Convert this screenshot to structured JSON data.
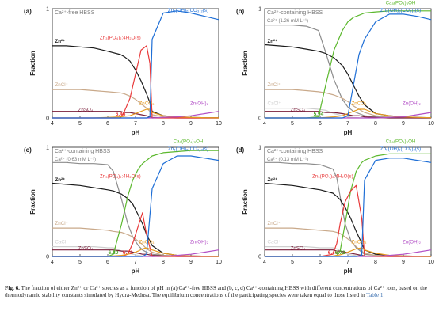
{
  "colors": {
    "Zn2+": "#1a1a1a",
    "ZnCl+": "#c9a98a",
    "ZnSO4": "#7a1e3a",
    "Zn3(PO4)2:4H2O(s)": "#e8393a",
    "ZnCO3": "#e69a1e",
    "Zn(OH)2": "#b24fc6",
    "Zn5(OH)6(CO3)2(s)": "#1f6fd6",
    "Ca2+": "#8c8c8c",
    "CaCl+": "#cfcfcf",
    "Ca5(PO4)3OH": "#5cb82e",
    "annotation_red": "#e8393a",
    "annotation_green": "#4da32a"
  },
  "chart_data": [
    {
      "type": "line",
      "panel": "(a)",
      "title": "Ca²⁺-free HBSS",
      "subtitle": "",
      "xlabel": "pH",
      "ylabel": "Fraction",
      "xlim": [
        4,
        10
      ],
      "ylim": [
        0,
        1
      ],
      "xticks": [
        "4",
        "5",
        "6",
        "7",
        "8",
        "9",
        "10"
      ],
      "yticks": [
        "0",
        "1"
      ],
      "x": [
        4,
        4.5,
        5,
        5.5,
        6,
        6.46,
        6.6,
        6.8,
        7,
        7.2,
        7.4,
        7.52,
        7.6,
        8,
        8.5,
        9,
        9.5,
        10
      ],
      "series": [
        {
          "name": "Zn²⁺",
          "values": [
            0.66,
            0.66,
            0.65,
            0.64,
            0.61,
            0.58,
            0.56,
            0.52,
            0.44,
            0.34,
            0.22,
            0.14,
            0.06,
            0.02,
            0.01,
            0.005,
            0.002,
            0.001
          ]
        },
        {
          "name": "ZnCl⁺",
          "values": [
            0.26,
            0.26,
            0.26,
            0.25,
            0.24,
            0.23,
            0.22,
            0.2,
            0.17,
            0.13,
            0.09,
            0.06,
            0.03,
            0.01,
            0.005,
            0.002,
            0.001,
            0
          ]
        },
        {
          "name": "ZnSO₄",
          "values": [
            0.06,
            0.06,
            0.06,
            0.06,
            0.06,
            0.06,
            0.05,
            0.05,
            0.04,
            0.03,
            0.02,
            0.01,
            0.005,
            0.002,
            0,
            0,
            0,
            0
          ]
        },
        {
          "name": "Zn₃(PO₄)₂:4H₂O(s)",
          "values": [
            0,
            0,
            0,
            0,
            0,
            0,
            0.06,
            0.18,
            0.4,
            0.62,
            0.66,
            0.5,
            0,
            0,
            0,
            0,
            0,
            0
          ]
        },
        {
          "name": "ZnCO₃",
          "values": [
            0,
            0,
            0,
            0,
            0.005,
            0.01,
            0.015,
            0.02,
            0.04,
            0.06,
            0.08,
            0.08,
            0.05,
            0.02,
            0.01,
            0.005,
            0.002,
            0.001
          ]
        },
        {
          "name": "Zn(OH)₂",
          "values": [
            0,
            0,
            0,
            0,
            0,
            0,
            0,
            0,
            0,
            0,
            0,
            0,
            0,
            0.005,
            0.01,
            0.02,
            0.04,
            0.06
          ]
        },
        {
          "name": "Zn₅(OH)₆(CO₃)₂(s)",
          "values": [
            0,
            0,
            0,
            0,
            0,
            0,
            0,
            0,
            0,
            0,
            0,
            0.01,
            0.72,
            0.96,
            0.98,
            0.96,
            0.93,
            0.9
          ]
        }
      ],
      "annotations": [
        {
          "text": "6.46",
          "x": 6.46,
          "color": "annotation_red"
        }
      ]
    },
    {
      "type": "line",
      "panel": "(b)",
      "title": "Ca²⁺-containing HBSS",
      "subtitle": "Ca²⁺ (1.26 mM L⁻¹)",
      "xlabel": "pH",
      "ylabel": "Fraction",
      "xlim": [
        4,
        10
      ],
      "ylim": [
        0,
        1
      ],
      "xticks": [
        "4",
        "5",
        "6",
        "7",
        "8",
        "9",
        "10"
      ],
      "yticks": [
        "0",
        "1"
      ],
      "x": [
        4,
        4.5,
        5,
        5.5,
        5.94,
        6.2,
        6.5,
        6.8,
        7,
        7.2,
        7.4,
        7.6,
        8,
        8.5,
        9,
        9.5,
        10
      ],
      "series": [
        {
          "name": "Ca²⁺",
          "values": [
            0.85,
            0.85,
            0.85,
            0.84,
            0.8,
            0.6,
            0.35,
            0.17,
            0.1,
            0.06,
            0.04,
            0.02,
            0.01,
            0.005,
            0.002,
            0.001,
            0
          ]
        },
        {
          "name": "Zn²⁺",
          "values": [
            0.67,
            0.66,
            0.65,
            0.63,
            0.61,
            0.59,
            0.55,
            0.48,
            0.4,
            0.3,
            0.2,
            0.12,
            0.04,
            0.02,
            0.01,
            0.005,
            0.002
          ]
        },
        {
          "name": "ZnCl⁺",
          "values": [
            0.26,
            0.26,
            0.26,
            0.25,
            0.24,
            0.23,
            0.21,
            0.18,
            0.15,
            0.11,
            0.08,
            0.05,
            0.02,
            0.01,
            0.005,
            0.002,
            0.001
          ]
        },
        {
          "name": "CaCl⁺",
          "values": [
            0.09,
            0.09,
            0.09,
            0.09,
            0.08,
            0.07,
            0.04,
            0.02,
            0.01,
            0.005,
            0.002,
            0.001,
            0,
            0,
            0,
            0,
            0
          ]
        },
        {
          "name": "ZnSO₄",
          "values": [
            0.06,
            0.06,
            0.06,
            0.06,
            0.06,
            0.05,
            0.05,
            0.04,
            0.03,
            0.02,
            0.02,
            0.01,
            0.005,
            0,
            0,
            0,
            0
          ]
        },
        {
          "name": "Ca₅(PO₄)₃OH",
          "values": [
            0,
            0,
            0,
            0,
            0.01,
            0.3,
            0.62,
            0.8,
            0.88,
            0.92,
            0.94,
            0.96,
            0.97,
            0.98,
            0.98,
            0.98,
            0.98
          ]
        },
        {
          "name": "ZnCO₃",
          "values": [
            0,
            0,
            0,
            0,
            0,
            0.005,
            0.01,
            0.02,
            0.04,
            0.06,
            0.08,
            0.08,
            0.04,
            0.02,
            0.01,
            0.005,
            0.002
          ]
        },
        {
          "name": "Zn(OH)₂",
          "values": [
            0,
            0,
            0,
            0,
            0,
            0,
            0,
            0,
            0,
            0,
            0,
            0,
            0,
            0.005,
            0.01,
            0.03,
            0.05
          ]
        },
        {
          "name": "Zn₅(OH)₆(CO₃)₂(s)",
          "values": [
            0,
            0,
            0,
            0,
            0,
            0,
            0,
            0,
            0.02,
            0.3,
            0.58,
            0.72,
            0.88,
            0.95,
            0.95,
            0.93,
            0.9
          ]
        }
      ],
      "annotations": [
        {
          "text": "5.94",
          "x": 5.94,
          "color": "annotation_green"
        }
      ]
    },
    {
      "type": "line",
      "panel": "(c)",
      "title": "Ca²⁺-containing HBSS",
      "subtitle": "Ca²⁺ (0.63 mM L⁻¹)",
      "xlabel": "pH",
      "ylabel": "Fraction",
      "xlim": [
        4,
        10
      ],
      "ylim": [
        0,
        1
      ],
      "xticks": [
        "4",
        "5",
        "6",
        "7",
        "8",
        "9",
        "10"
      ],
      "yticks": [
        "0",
        "1"
      ],
      "x": [
        4,
        4.5,
        5,
        5.5,
        6,
        6.2,
        6.5,
        6.72,
        6.9,
        7.1,
        7.25,
        7.4,
        7.6,
        8,
        8.5,
        9,
        9.5,
        10
      ],
      "series": [
        {
          "name": "Ca²⁺",
          "values": [
            0.86,
            0.86,
            0.85,
            0.85,
            0.84,
            0.78,
            0.52,
            0.3,
            0.18,
            0.1,
            0.06,
            0.04,
            0.02,
            0.01,
            0.005,
            0.002,
            0.001,
            0
          ]
        },
        {
          "name": "Zn²⁺",
          "values": [
            0.67,
            0.66,
            0.65,
            0.63,
            0.61,
            0.6,
            0.57,
            0.53,
            0.48,
            0.38,
            0.3,
            0.2,
            0.1,
            0.03,
            0.01,
            0.005,
            0.002,
            0.001
          ]
        },
        {
          "name": "ZnCl⁺",
          "values": [
            0.26,
            0.26,
            0.26,
            0.25,
            0.24,
            0.23,
            0.22,
            0.2,
            0.18,
            0.14,
            0.11,
            0.07,
            0.04,
            0.01,
            0.005,
            0.002,
            0.001,
            0
          ]
        },
        {
          "name": "CaCl⁺",
          "values": [
            0.09,
            0.09,
            0.09,
            0.09,
            0.08,
            0.08,
            0.05,
            0.03,
            0.02,
            0.01,
            0.005,
            0.002,
            0,
            0,
            0,
            0,
            0,
            0
          ]
        },
        {
          "name": "ZnSO₄",
          "values": [
            0.06,
            0.06,
            0.06,
            0.06,
            0.06,
            0.06,
            0.05,
            0.05,
            0.04,
            0.03,
            0.02,
            0.02,
            0.01,
            0.005,
            0,
            0,
            0,
            0
          ]
        },
        {
          "name": "Ca₅(PO₄)₃OH",
          "values": [
            0,
            0,
            0,
            0,
            0,
            0.02,
            0.3,
            0.55,
            0.7,
            0.8,
            0.85,
            0.88,
            0.92,
            0.95,
            0.96,
            0.97,
            0.97,
            0.97
          ]
        },
        {
          "name": "Zn₃(PO₄)₂:4H₂O(s)",
          "values": [
            0,
            0,
            0,
            0,
            0,
            0,
            0,
            0.02,
            0.12,
            0.28,
            0.4,
            0.2,
            0,
            0,
            0,
            0,
            0,
            0
          ]
        },
        {
          "name": "ZnCO₃",
          "values": [
            0,
            0,
            0,
            0,
            0,
            0.005,
            0.01,
            0.02,
            0.03,
            0.05,
            0.07,
            0.08,
            0.06,
            0.03,
            0.01,
            0.005,
            0.002,
            0.001
          ]
        },
        {
          "name": "Zn(OH)₂",
          "values": [
            0,
            0,
            0,
            0,
            0,
            0,
            0,
            0,
            0,
            0,
            0,
            0,
            0,
            0.002,
            0.01,
            0.02,
            0.04,
            0.06
          ]
        },
        {
          "name": "Zn₅(OH)₆(CO₃)₂(s)",
          "values": [
            0,
            0,
            0,
            0,
            0,
            0,
            0,
            0,
            0,
            0,
            0,
            0.02,
            0.62,
            0.85,
            0.92,
            0.92,
            0.9,
            0.88
          ]
        }
      ],
      "annotations": [
        {
          "text": "6.20",
          "x": 6.2,
          "color": "annotation_green"
        },
        {
          "text": "6.72",
          "x": 6.72,
          "color": "annotation_red"
        }
      ]
    },
    {
      "type": "line",
      "panel": "(d)",
      "title": "Ca²⁺-containing HBSS",
      "subtitle": "Ca²⁺ (0.13 mM L⁻¹)",
      "xlabel": "pH",
      "ylabel": "Fraction",
      "xlim": [
        4,
        10
      ],
      "ylim": [
        0,
        1
      ],
      "xticks": [
        "4",
        "5",
        "6",
        "7",
        "8",
        "9",
        "10"
      ],
      "yticks": [
        "0",
        "1"
      ],
      "x": [
        4,
        4.5,
        5,
        5.5,
        6,
        6.46,
        6.6,
        6.72,
        6.9,
        7.1,
        7.3,
        7.5,
        7.6,
        8,
        8.5,
        9,
        9.5,
        10
      ],
      "series": [
        {
          "name": "Ca²⁺",
          "values": [
            0.86,
            0.86,
            0.85,
            0.85,
            0.84,
            0.8,
            0.72,
            0.55,
            0.3,
            0.15,
            0.08,
            0.04,
            0.02,
            0.01,
            0.005,
            0.002,
            0.001,
            0
          ]
        },
        {
          "name": "Zn²⁺",
          "values": [
            0.67,
            0.66,
            0.65,
            0.63,
            0.61,
            0.58,
            0.55,
            0.52,
            0.45,
            0.35,
            0.23,
            0.12,
            0.06,
            0.02,
            0.01,
            0.005,
            0.002,
            0.001
          ]
        },
        {
          "name": "ZnCl⁺",
          "values": [
            0.26,
            0.26,
            0.26,
            0.25,
            0.24,
            0.23,
            0.22,
            0.21,
            0.18,
            0.14,
            0.09,
            0.05,
            0.03,
            0.01,
            0.005,
            0.002,
            0.001,
            0
          ]
        },
        {
          "name": "CaCl⁺",
          "values": [
            0.09,
            0.09,
            0.09,
            0.09,
            0.08,
            0.08,
            0.07,
            0.05,
            0.03,
            0.015,
            0.008,
            0.004,
            0.002,
            0,
            0,
            0,
            0,
            0
          ]
        },
        {
          "name": "ZnSO₄",
          "values": [
            0.06,
            0.06,
            0.06,
            0.06,
            0.06,
            0.06,
            0.05,
            0.05,
            0.04,
            0.03,
            0.02,
            0.01,
            0.005,
            0.002,
            0,
            0,
            0,
            0
          ]
        },
        {
          "name": "Ca₅(PO₄)₃OH",
          "values": [
            0,
            0,
            0,
            0,
            0,
            0,
            0.01,
            0.05,
            0.3,
            0.6,
            0.78,
            0.86,
            0.88,
            0.92,
            0.94,
            0.94,
            0.94,
            0.94
          ]
        },
        {
          "name": "Zn₃(PO₄)₂:4H₂O(s)",
          "values": [
            0,
            0,
            0,
            0,
            0,
            0.02,
            0.12,
            0.3,
            0.5,
            0.6,
            0.65,
            0.35,
            0,
            0,
            0,
            0,
            0,
            0
          ]
        },
        {
          "name": "ZnCO₃",
          "values": [
            0,
            0,
            0,
            0,
            0,
            0.005,
            0.01,
            0.015,
            0.03,
            0.05,
            0.07,
            0.08,
            0.06,
            0.03,
            0.01,
            0.005,
            0.002,
            0.001
          ]
        },
        {
          "name": "Zn(OH)₂",
          "values": [
            0,
            0,
            0,
            0,
            0,
            0,
            0,
            0,
            0,
            0,
            0,
            0,
            0,
            0.002,
            0.01,
            0.02,
            0.04,
            0.06
          ]
        },
        {
          "name": "Zn₅(OH)₆(CO₃)₂(s)",
          "values": [
            0,
            0,
            0,
            0,
            0,
            0,
            0,
            0,
            0,
            0,
            0,
            0.01,
            0.7,
            0.88,
            0.9,
            0.9,
            0.88,
            0.86
          ]
        }
      ],
      "annotations": [
        {
          "text": "6.46",
          "x": 6.46,
          "color": "annotation_red"
        },
        {
          "text": "6.72",
          "x": 6.72,
          "color": "annotation_green"
        }
      ]
    }
  ],
  "caption": {
    "label": "Fig. 6.",
    "text": "The fraction of either Zn²⁺ or Ca²⁺ species as a function of pH in (a) Ca²⁺-free HBSS and (b, c, d) Ca²⁺-containing HBSS with different concentrations of Ca²⁺ ions, based on the thermodynamic stability constants simulated by Hydra-Medusa. The equilibrium concentrations of the participating species were taken equal to those listed in",
    "link": "Table 1",
    "end": "."
  }
}
